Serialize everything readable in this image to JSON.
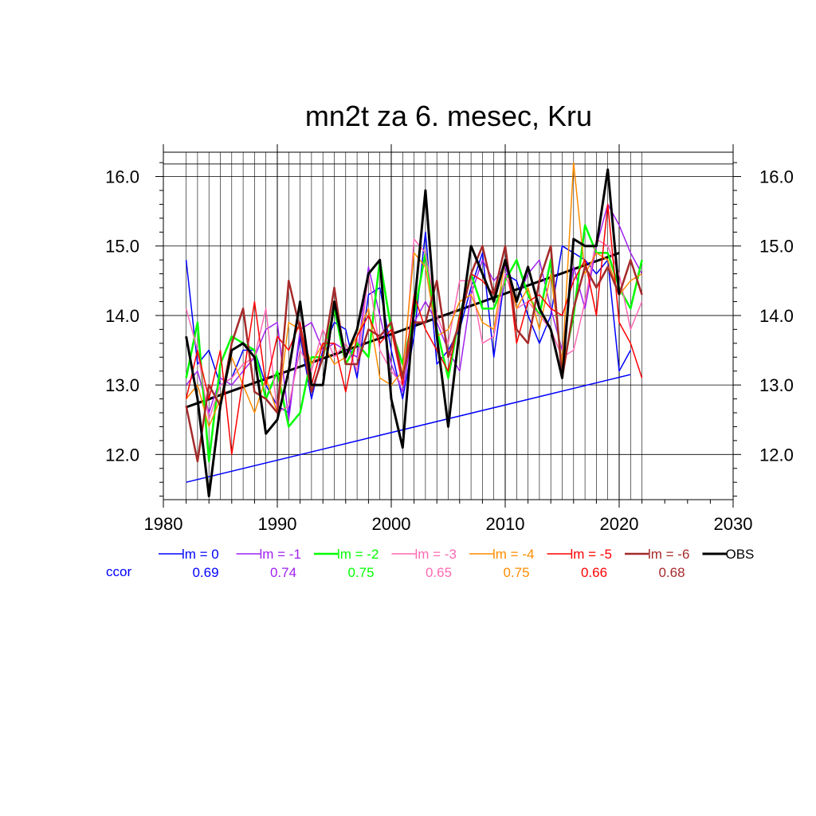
{
  "chart_data": {
    "type": "line",
    "title": "mn2t za 6. mesec, Kru",
    "xlabel": "",
    "ylabel": "",
    "xlim": [
      1980,
      2030
    ],
    "ylim": [
      11.35,
      16.35
    ],
    "x_ticks": [
      "1980",
      "1990",
      "2000",
      "2010",
      "2020",
      "2030"
    ],
    "y_ticks": [
      "12.0",
      "13.0",
      "14.0",
      "15.0",
      "16.0"
    ],
    "grid": true,
    "ccor_label": "ccor",
    "legend_position": "bottom",
    "series": [
      {
        "name": "lm = 0",
        "color": "#0000ff",
        "width": 1.5,
        "ccor": "0.69",
        "x": [
          1982,
          1983,
          1984,
          1985,
          1986,
          1987,
          1988,
          1989,
          1990,
          1991,
          1992,
          1993,
          1994,
          1995,
          1996,
          1997,
          1998,
          1999,
          2000,
          2001,
          2002,
          2003,
          2004,
          2005,
          2006,
          2007,
          2008,
          2009,
          2010,
          2011,
          2012,
          2013,
          2014,
          2015,
          2016,
          2017,
          2018,
          2019,
          2020,
          2021
        ],
        "y": [
          14.8,
          13.3,
          13.5,
          13.0,
          13.1,
          13.5,
          13.5,
          13.0,
          12.7,
          12.6,
          13.7,
          12.8,
          13.5,
          13.9,
          13.8,
          13.1,
          14.3,
          14.4,
          13.5,
          12.8,
          13.7,
          15.2,
          13.3,
          13.5,
          13.8,
          14.4,
          14.9,
          13.4,
          14.6,
          14.5,
          14.0,
          13.6,
          14.0,
          15.0,
          14.9,
          14.8,
          14.6,
          14.8,
          13.2,
          13.5
        ]
      },
      {
        "name": "lm = -1",
        "color": "#a020f0",
        "width": 1.5,
        "ccor": "0.74",
        "x": [
          1982,
          1983,
          1984,
          1985,
          1986,
          1987,
          1988,
          1989,
          1990,
          1991,
          1992,
          1993,
          1994,
          1995,
          1996,
          1997,
          1998,
          1999,
          2000,
          2001,
          2002,
          2003,
          2004,
          2005,
          2006,
          2007,
          2008,
          2009,
          2010,
          2011,
          2012,
          2013,
          2014,
          2015,
          2016,
          2017,
          2018,
          2019,
          2020,
          2021,
          2022
        ],
        "y": [
          13.0,
          13.2,
          12.6,
          13.1,
          13.0,
          13.2,
          13.4,
          13.8,
          13.9,
          12.5,
          13.8,
          13.9,
          13.5,
          13.6,
          13.5,
          13.4,
          14.7,
          14.0,
          13.3,
          12.9,
          13.9,
          14.2,
          13.9,
          13.5,
          13.2,
          14.3,
          14.8,
          14.5,
          14.7,
          14.2,
          14.6,
          14.8,
          14.1,
          13.5,
          14.7,
          14.1,
          15.0,
          15.6,
          15.3,
          14.9,
          14.6
        ]
      },
      {
        "name": "lm = -2",
        "color": "#00ff00",
        "width": 2.5,
        "ccor": "0.75",
        "x": [
          1982,
          1983,
          1984,
          1985,
          1986,
          1987,
          1988,
          1989,
          1990,
          1991,
          1992,
          1993,
          1994,
          1995,
          1996,
          1997,
          1998,
          1999,
          2000,
          2001,
          2002,
          2003,
          2004,
          2005,
          2006,
          2007,
          2008,
          2009,
          2010,
          2011,
          2012,
          2013,
          2014,
          2015,
          2016,
          2017,
          2018,
          2019,
          2020,
          2021,
          2022
        ],
        "y": [
          13.1,
          13.9,
          11.9,
          13.3,
          13.7,
          13.6,
          13.5,
          12.8,
          13.2,
          12.4,
          12.6,
          13.4,
          13.4,
          14.1,
          13.3,
          13.6,
          13.4,
          14.8,
          13.8,
          13.3,
          14.0,
          14.9,
          13.8,
          13.1,
          14.0,
          14.6,
          14.1,
          14.1,
          14.5,
          14.8,
          14.3,
          14.0,
          14.8,
          13.2,
          14.0,
          15.3,
          14.9,
          14.9,
          14.4,
          14.1,
          14.8
        ]
      },
      {
        "name": "lm = -3",
        "color": "#ff69b4",
        "width": 1.5,
        "ccor": "0.65",
        "x": [
          1982,
          1983,
          1984,
          1985,
          1986,
          1987,
          1988,
          1989,
          1990,
          1991,
          1992,
          1993,
          1994,
          1995,
          1996,
          1997,
          1998,
          1999,
          2000,
          2001,
          2002,
          2003,
          2004,
          2005,
          2006,
          2007,
          2008,
          2009,
          2010,
          2011,
          2012,
          2013,
          2014,
          2015,
          2016,
          2017,
          2018,
          2019,
          2020,
          2021,
          2022
        ],
        "y": [
          14.1,
          13.5,
          12.5,
          13.0,
          13.1,
          13.3,
          13.4,
          14.1,
          12.6,
          12.7,
          13.5,
          13.2,
          13.8,
          13.4,
          13.6,
          13.2,
          14.6,
          13.5,
          13.2,
          13.0,
          15.1,
          14.9,
          14.0,
          13.6,
          14.5,
          14.5,
          13.6,
          13.7,
          14.6,
          14.1,
          14.2,
          14.0,
          13.8,
          13.4,
          13.5,
          14.2,
          15.1,
          15.0,
          14.6,
          13.8,
          14.2
        ]
      },
      {
        "name": "lm = -4",
        "color": "#ff8c00",
        "width": 1.5,
        "ccor": "0.75",
        "x": [
          1982,
          1983,
          1984,
          1985,
          1986,
          1987,
          1988,
          1989,
          1990,
          1991,
          1992,
          1993,
          1994,
          1995,
          1996,
          1997,
          1998,
          1999,
          2000,
          2001,
          2002,
          2003,
          2004,
          2005,
          2006,
          2007,
          2008,
          2009,
          2010,
          2011,
          2012,
          2013,
          2014,
          2015,
          2016,
          2017,
          2018,
          2019,
          2020,
          2021,
          2022
        ],
        "y": [
          12.8,
          13.0,
          12.4,
          12.8,
          13.4,
          13.0,
          12.6,
          13.1,
          12.6,
          13.9,
          13.8,
          13.3,
          13.6,
          13.3,
          13.4,
          13.7,
          14.1,
          13.1,
          13.0,
          13.2,
          14.9,
          14.7,
          13.7,
          13.8,
          14.2,
          14.3,
          13.9,
          13.8,
          14.8,
          14.1,
          14.4,
          13.8,
          14.6,
          13.3,
          16.2,
          14.6,
          14.9,
          14.8,
          14.3,
          14.5,
          14.6
        ]
      },
      {
        "name": "lm = -5",
        "color": "#ff0000",
        "width": 1.5,
        "ccor": "0.66",
        "x": [
          1982,
          1983,
          1984,
          1985,
          1986,
          1987,
          1988,
          1989,
          1990,
          1991,
          1992,
          1993,
          1994,
          1995,
          1996,
          1997,
          1998,
          1999,
          2000,
          2001,
          2002,
          2003,
          2004,
          2005,
          2006,
          2007,
          2008,
          2009,
          2010,
          2011,
          2012,
          2013,
          2014,
          2015,
          2016,
          2017,
          2018,
          2019,
          2020,
          2021,
          2022
        ],
        "y": [
          12.8,
          13.5,
          12.8,
          13.5,
          12.0,
          13.1,
          14.2,
          13.0,
          13.7,
          13.5,
          13.9,
          13.0,
          13.6,
          13.6,
          12.9,
          13.7,
          14.0,
          13.6,
          13.8,
          13.0,
          14.3,
          13.8,
          13.5,
          13.2,
          14.0,
          14.6,
          14.5,
          14.3,
          15.0,
          13.6,
          14.2,
          14.3,
          14.1,
          14.0,
          14.5,
          14.8,
          14.0,
          15.6,
          13.9,
          13.6,
          13.1
        ]
      },
      {
        "name": "lm = -6",
        "color": "#a52a2a",
        "width": 2.5,
        "ccor": "0.68",
        "x": [
          1982,
          1983,
          1984,
          1985,
          1986,
          1987,
          1988,
          1989,
          1990,
          1991,
          1992,
          1993,
          1994,
          1995,
          1996,
          1997,
          1998,
          1999,
          2000,
          2001,
          2002,
          2003,
          2004,
          2005,
          2006,
          2007,
          2008,
          2009,
          2010,
          2011,
          2012,
          2013,
          2014,
          2015,
          2016,
          2017,
          2018,
          2019,
          2020,
          2021,
          2022
        ],
        "y": [
          12.7,
          11.9,
          13.0,
          12.7,
          13.6,
          14.1,
          12.9,
          12.8,
          12.6,
          14.5,
          13.8,
          12.9,
          13.4,
          14.4,
          13.3,
          13.3,
          13.8,
          13.7,
          13.9,
          13.1,
          13.9,
          13.9,
          14.5,
          13.4,
          13.9,
          14.6,
          15.0,
          14.3,
          15.0,
          13.8,
          13.6,
          14.5,
          15.0,
          13.1,
          14.1,
          14.7,
          14.4,
          14.7,
          14.3,
          14.8,
          14.3
        ]
      },
      {
        "name": "OBS",
        "color": "#000000",
        "width": 3,
        "ccor": "",
        "x": [
          1982,
          1983,
          1984,
          1985,
          1986,
          1987,
          1988,
          1989,
          1990,
          1991,
          1992,
          1993,
          1994,
          1995,
          1996,
          1997,
          1998,
          1999,
          2000,
          2001,
          2002,
          2003,
          2004,
          2005,
          2006,
          2007,
          2008,
          2009,
          2010,
          2011,
          2012,
          2013,
          2014,
          2015,
          2016,
          2017,
          2018,
          2019,
          2020
        ],
        "y": [
          13.7,
          12.8,
          11.4,
          12.7,
          13.5,
          13.6,
          13.4,
          12.3,
          12.5,
          13.2,
          14.2,
          13.0,
          13.0,
          14.2,
          13.4,
          13.8,
          14.6,
          14.8,
          12.8,
          12.1,
          14.1,
          15.8,
          13.7,
          12.4,
          13.8,
          15.0,
          14.6,
          14.2,
          14.8,
          14.2,
          14.7,
          14.1,
          13.8,
          13.1,
          15.1,
          15.0,
          15.0,
          16.1,
          14.3
        ]
      }
    ],
    "trend_lines": [
      {
        "series": "lm = 0",
        "color": "#0000ff",
        "width": 1.5,
        "x": [
          1982,
          2021
        ],
        "y": [
          11.6,
          13.15
        ]
      },
      {
        "series": "OBS",
        "color": "#000000",
        "width": 3,
        "x": [
          1982,
          2020
        ],
        "y": [
          12.68,
          14.9
        ]
      }
    ],
    "reference_line": 16.18
  }
}
